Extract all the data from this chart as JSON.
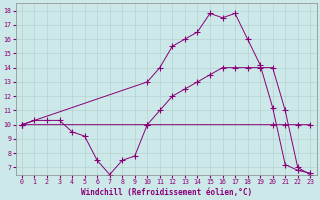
{
  "xlabel": "Windchill (Refroidissement éolien,°C)",
  "xlim": [
    -0.5,
    23.5
  ],
  "ylim": [
    6.5,
    18.5
  ],
  "xticks": [
    0,
    1,
    2,
    3,
    4,
    5,
    6,
    7,
    8,
    9,
    10,
    11,
    12,
    13,
    14,
    15,
    16,
    17,
    18,
    19,
    20,
    21,
    22,
    23
  ],
  "yticks": [
    7,
    8,
    9,
    10,
    11,
    12,
    13,
    14,
    15,
    16,
    17,
    18
  ],
  "bg_color": "#cde8e8",
  "line_color": "#880077",
  "lines": [
    {
      "x": [
        0,
        1,
        2,
        3,
        4,
        5,
        6,
        7,
        8,
        9,
        10,
        20,
        21,
        22,
        23
      ],
      "y": [
        10,
        10.3,
        10.3,
        10.3,
        9.5,
        9.2,
        7.5,
        6.5,
        7.5,
        7.8,
        10,
        10,
        10,
        10,
        10
      ]
    },
    {
      "x": [
        0,
        10,
        11,
        12,
        13,
        14,
        15,
        16,
        17,
        18,
        19,
        20,
        21,
        22,
        23
      ],
      "y": [
        10,
        10,
        11,
        12,
        12.5,
        13,
        13.5,
        14,
        14,
        14,
        14,
        14,
        11,
        7,
        6.5
      ]
    },
    {
      "x": [
        0,
        10,
        11,
        12,
        13,
        14,
        15,
        16,
        17,
        18,
        19,
        20,
        21,
        22,
        23
      ],
      "y": [
        10,
        13,
        14,
        15.5,
        16,
        16.5,
        17.8,
        17.5,
        17.8,
        16,
        14.2,
        11.2,
        7.2,
        6.8,
        6.6
      ]
    }
  ]
}
